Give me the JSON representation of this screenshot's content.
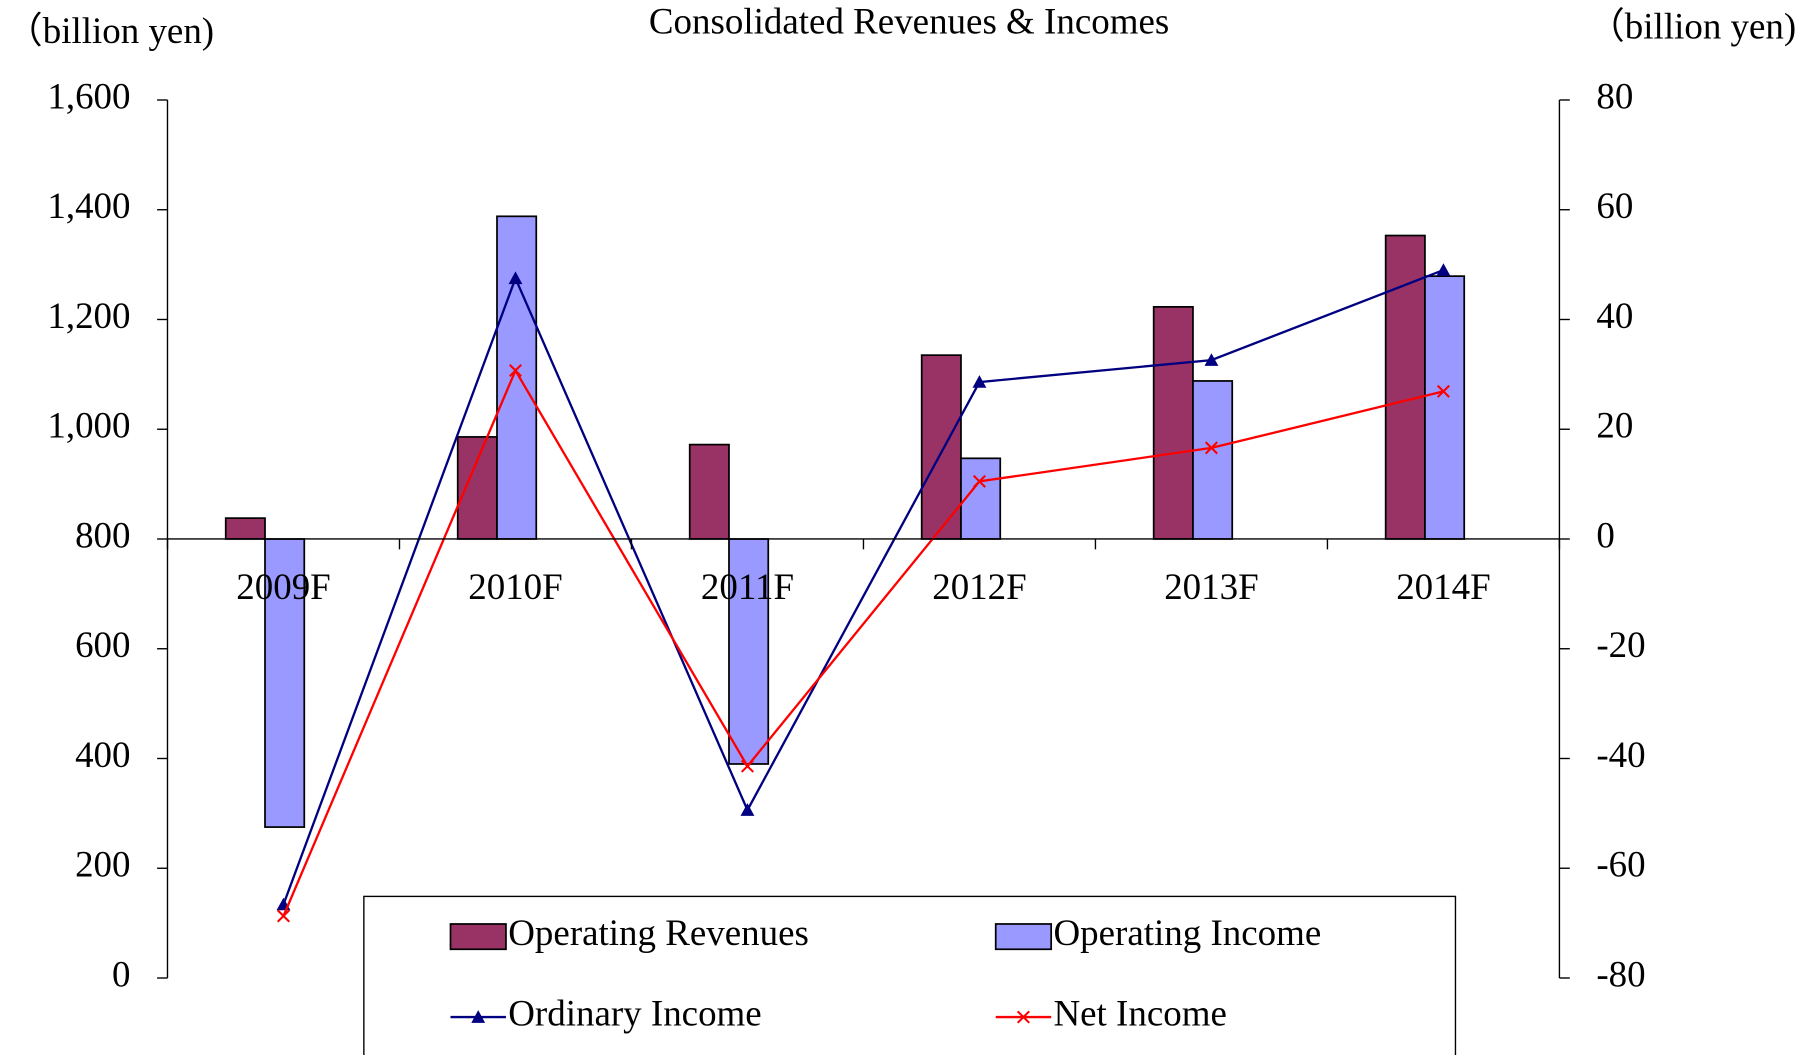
{
  "chart_data": {
    "type": "bar_line",
    "title": "Consolidated Revenues & Incomes",
    "ylabel": "（billion yen)",
    "y2label": "（billion yen)",
    "categories": [
      "2009F",
      "2010F",
      "2011F",
      "2012F",
      "2013F",
      "2014F"
    ],
    "ylim": [
      0,
      1600
    ],
    "yticks": [
      0,
      200,
      400,
      600,
      800,
      {
        "value": 1000,
        "label": "1,000"
      },
      {
        "value": 1200,
        "label": "1,200"
      },
      {
        "value": 1400,
        "label": "1,400"
      },
      {
        "value": 1600,
        "label": "1,600"
      }
    ],
    "y2lim": [
      -80,
      80
    ],
    "y2ticks": [
      -80,
      -60,
      -40,
      -20,
      0,
      20,
      40,
      60,
      80
    ],
    "y2_negative_tick_color": "#ff0000",
    "category_axis_at": 800,
    "series": [
      {
        "name": "Operating Revenues",
        "kind": "bar",
        "color": "#993366",
        "values": [
          838,
          986,
          972,
          1135,
          1223,
          1353
        ]
      },
      {
        "name": "Operating Income",
        "kind": "bar",
        "axis": "y2",
        "color": "#9999ff",
        "values": [
          -52.5,
          58.8,
          -41,
          14.7,
          28.8,
          47.9
        ]
      },
      {
        "name": "Ordinary Income",
        "kind": "line",
        "marker": "triangle",
        "axis": "y2",
        "color": "#000080",
        "values": [
          -66.6,
          47.5,
          -49.4,
          28.6,
          32.6,
          49
        ]
      },
      {
        "name": "Net Income",
        "kind": "line",
        "marker": "x",
        "axis": "y2",
        "color": "#ff0000",
        "values": [
          -68.7,
          30.7,
          -41.4,
          10.5,
          16.6,
          26.9
        ]
      }
    ]
  }
}
